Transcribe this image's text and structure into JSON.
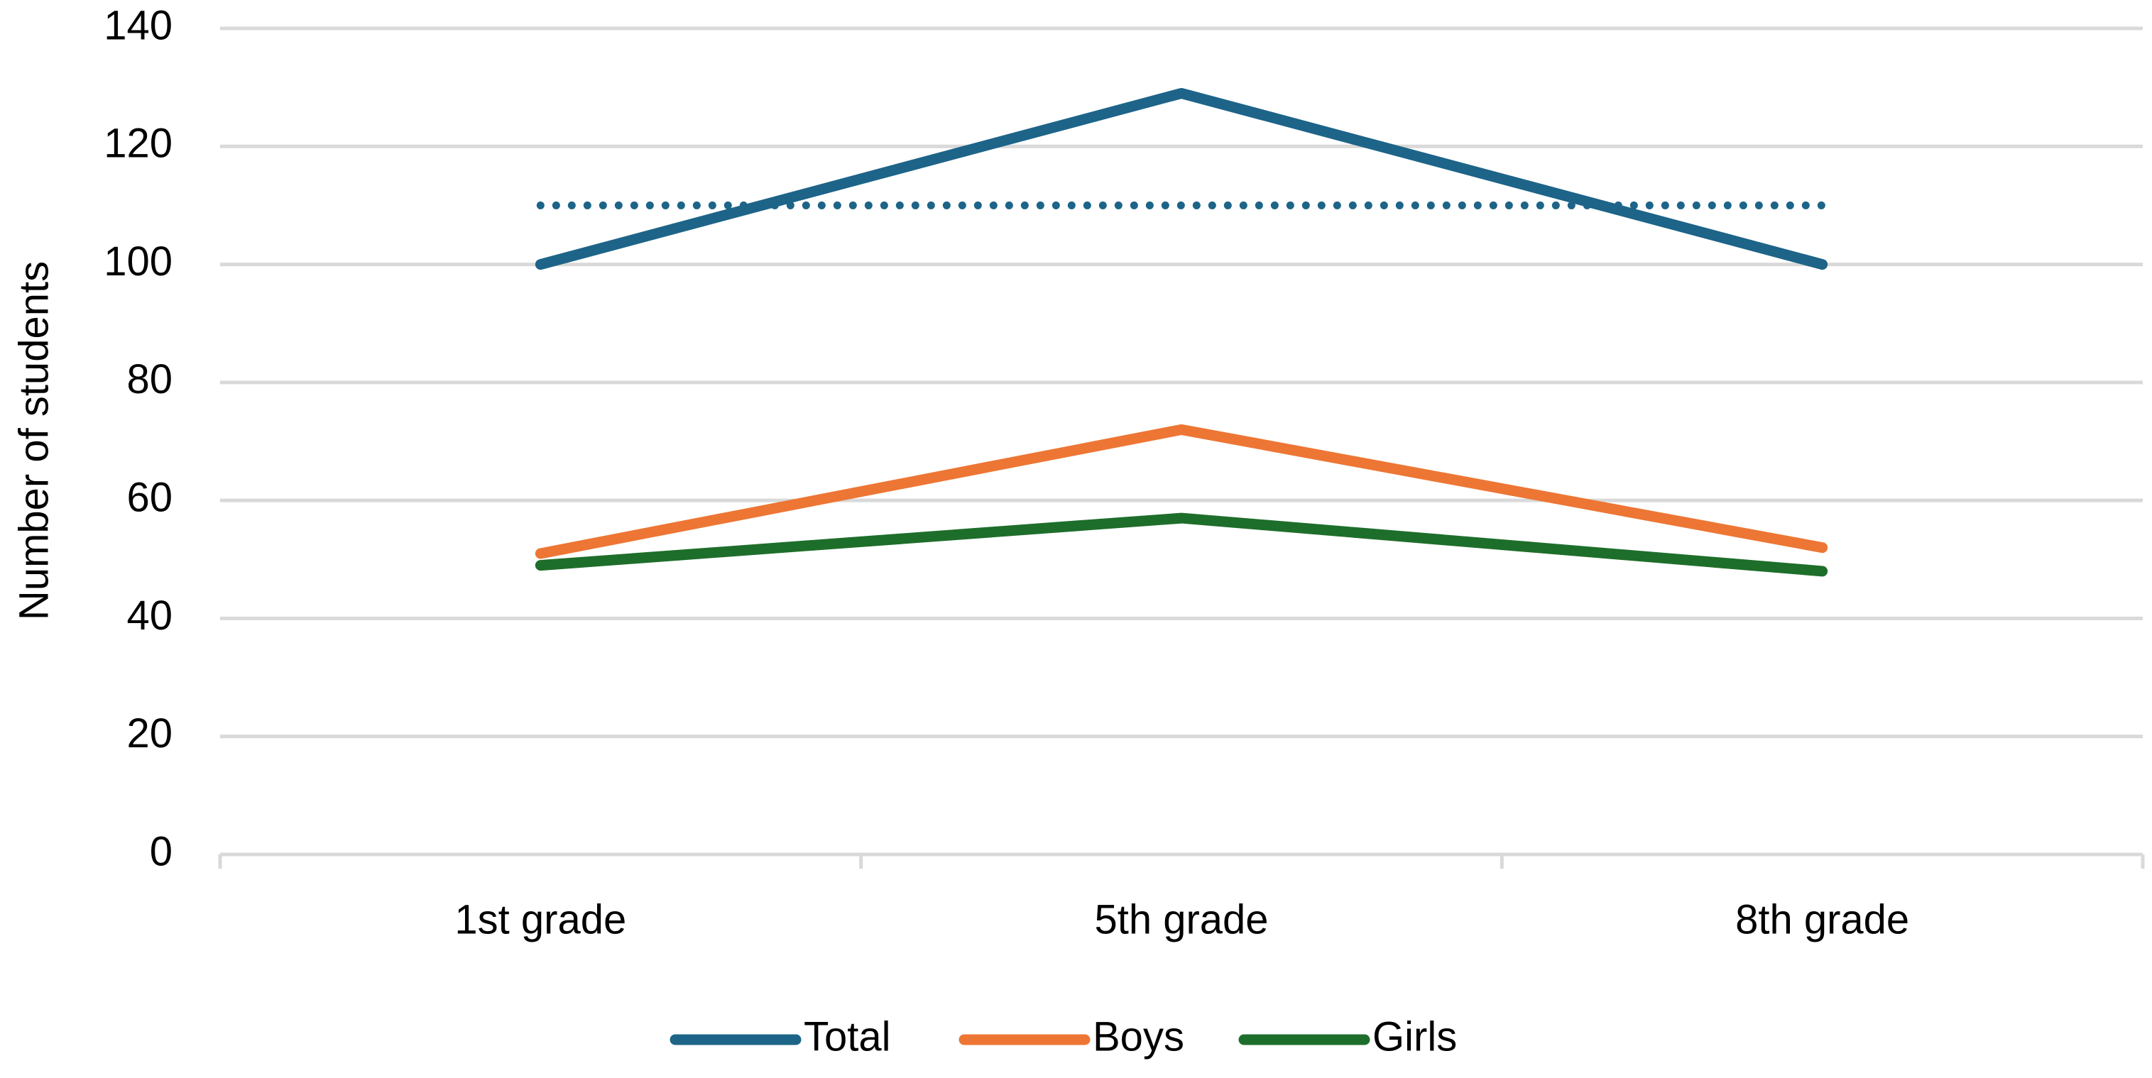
{
  "chart_data": {
    "type": "line",
    "y_label": "Number of students",
    "categories": [
      "1st grade",
      "5th grade",
      "8th grade"
    ],
    "series": [
      {
        "name": "Total",
        "color": "#1d6488",
        "values": [
          100,
          129,
          100
        ]
      },
      {
        "name": "Boys",
        "color": "#ed7634",
        "values": [
          51,
          72,
          52
        ]
      },
      {
        "name": "Girls",
        "color": "#1e6e2b",
        "values": [
          49,
          57,
          48
        ]
      }
    ],
    "reference_line": {
      "value": 110,
      "color": "#1d6488",
      "style": "dotted"
    },
    "ylim": [
      0,
      140
    ],
    "yticks": [
      0,
      20,
      40,
      60,
      80,
      100,
      120,
      140
    ],
    "grid": true,
    "legend": "bottom"
  }
}
